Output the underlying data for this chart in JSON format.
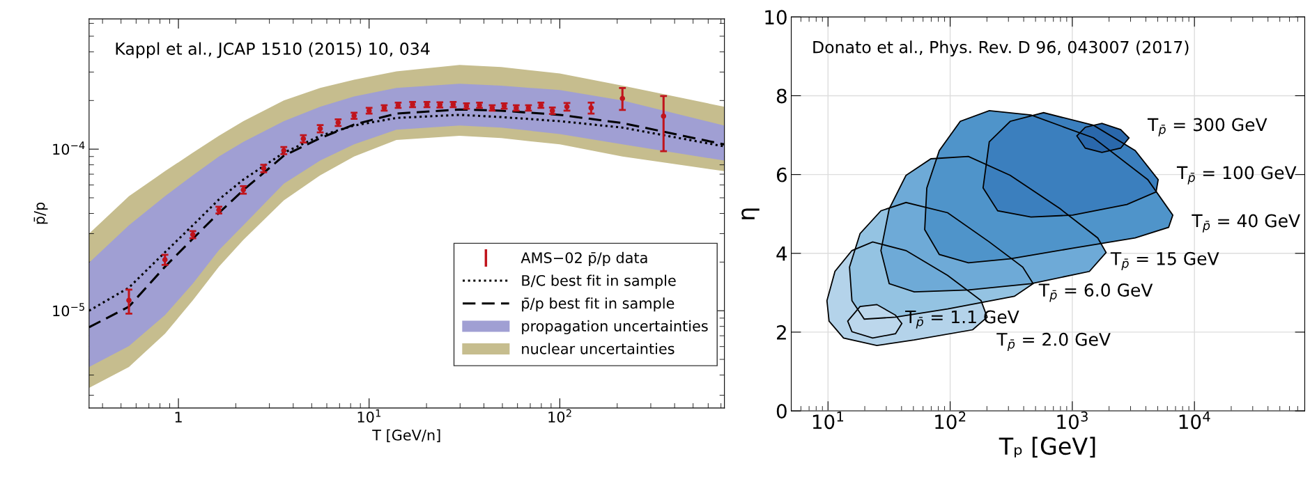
{
  "chart_data": [
    {
      "type": "line",
      "annotations": [
        "Kappl et al., JCAP 1510 (2015) 10, 034"
      ],
      "xlabel": "T [GeV/n]",
      "ylabel": "p̄/p",
      "log": "xy",
      "xlim": [
        0.34,
        730
      ],
      "ylim": [
        2.5e-06,
        0.00064
      ],
      "xticks": [
        1,
        {
          "value": 10,
          "label": "10$^{1}$"
        },
        {
          "value": 100,
          "label": "10$^{2}$"
        }
      ],
      "yticks": [
        {
          "value": 1e-05,
          "label": "10$^{−5}$"
        },
        {
          "value": 0.0001,
          "label": "10$^{−4}$"
        }
      ],
      "legend": "bottom right",
      "series": [
        {
          "name": "nuclear uncertainties",
          "type": "area",
          "color": "#c6bd8e",
          "x": [
            0.34,
            0.55,
            0.85,
            1.19,
            1.63,
            2.19,
            3.57,
            5.54,
            8.34,
            13.9,
            29.8,
            49.3,
            100,
            213,
            728
          ],
          "values": [
            null,
            null,
            null,
            null,
            null,
            null,
            null,
            null,
            null,
            null,
            null,
            null,
            null,
            null,
            null
          ],
          "lower": [
            3.33e-06,
            4.49e-06,
            7.2e-06,
            1.16e-05,
            1.87e-05,
            2.74e-05,
            4.82e-05,
            6.89e-05,
            9e-05,
            0.000114,
            0.000121,
            0.000117,
            0.000107,
            9e-05,
            7.3e-05
          ],
          "upper": [
            3e-05,
            5.11e-05,
            7.3e-05,
            9.5e-05,
            0.000121,
            0.000149,
            0.0002,
            0.000239,
            0.000269,
            0.000303,
            0.000332,
            0.000322,
            0.000294,
            0.000247,
            0.000183
          ]
        },
        {
          "name": "propagation uncertainties",
          "type": "area",
          "color": "#a09fd3",
          "x": [
            0.34,
            0.55,
            0.85,
            1.19,
            1.63,
            2.19,
            3.57,
            5.54,
            8.34,
            13.9,
            29.8,
            49.3,
            100,
            213,
            728
          ],
          "values": [
            null,
            null,
            null,
            null,
            null,
            null,
            null,
            null,
            null,
            null,
            null,
            null,
            null,
            null,
            null
          ],
          "lower": [
            4.49e-06,
            6.04e-06,
            9.4e-06,
            1.47e-05,
            2.37e-05,
            3.38e-05,
            6.11e-05,
            8.5e-05,
            0.000107,
            0.000132,
            0.00014,
            0.000136,
            0.000124,
            0.000107,
            8.5e-05
          ],
          "upper": [
            1.98e-05,
            3.38e-05,
            5.11e-05,
            6.89e-05,
            9e-05,
            0.000111,
            0.000149,
            0.000183,
            0.000212,
            0.000239,
            0.000254,
            0.000247,
            0.000232,
            0.0002,
            0.00014
          ]
        },
        {
          "name": "p̄/p best fit in sample",
          "type": "line",
          "line_style": "dashed",
          "color": "#000000",
          "x": [
            0.34,
            0.55,
            0.85,
            1.19,
            1.63,
            2.19,
            3.57,
            5.54,
            8.34,
            13.9,
            29.8,
            49.3,
            100,
            213,
            728
          ],
          "values": [
            7.9e-06,
            1.06e-05,
            1.87e-05,
            2.79e-05,
            4.03e-05,
            5.58e-05,
            9.1e-05,
            0.000117,
            0.000142,
            0.000166,
            0.000176,
            0.000173,
            0.000163,
            0.000145,
            0.000107
          ]
        },
        {
          "name": "B/C best fit in sample",
          "type": "line",
          "line_style": "dotted",
          "color": "#000000",
          "x": [
            0.34,
            0.55,
            0.85,
            1.19,
            1.63,
            2.19,
            3.57,
            5.54,
            8.34,
            13.9,
            29.8,
            49.3,
            100,
            213,
            728
          ],
          "values": [
            1e-05,
            1.39e-05,
            2.3e-05,
            3.38e-05,
            4.88e-05,
            6.48e-05,
            9.5e-05,
            0.000121,
            0.00014,
            0.000156,
            0.000163,
            0.000158,
            0.000149,
            0.000136,
            0.000104
          ]
        },
        {
          "name": "AMS−02 p̄/p data",
          "type": "scatter",
          "marker": "circle",
          "color": "#c0141c",
          "x": [
            0.55,
            0.85,
            1.19,
            1.63,
            2.19,
            2.8,
            3.57,
            4.52,
            5.54,
            6.88,
            8.34,
            10.0,
            12.0,
            14.2,
            16.9,
            20.1,
            23.5,
            27.6,
            32.4,
            37.9,
            44.2,
            51.1,
            59.1,
            68.5,
            79.6,
            91.4,
            109,
            146,
            213,
            350
          ],
          "values": [
            1.16e-05,
            2.07e-05,
            2.96e-05,
            4.2e-05,
            5.6e-05,
            7.6e-05,
            9.8e-05,
            0.000116,
            0.000134,
            0.000146,
            0.000161,
            0.000173,
            0.00018,
            0.000187,
            0.000189,
            0.000189,
            0.000188,
            0.000189,
            0.000185,
            0.000187,
            0.00018,
            0.000185,
            0.00018,
            0.00018,
            0.000187,
            0.000173,
            0.000183,
            0.00018,
            0.000206,
            0.00016
          ],
          "errors": [
            [
              9.6e-06,
              1.35e-05
            ],
            1.5e-06,
            1.5e-06,
            2e-06,
            3e-06,
            4e-06,
            5e-06,
            6e-06,
            7e-06,
            7e-06,
            7e-06,
            7e-06,
            7e-06,
            7e-06,
            7e-06,
            7e-06,
            7e-06,
            7e-06,
            7e-06,
            7e-06,
            7e-06,
            7e-06,
            7e-06,
            7e-06,
            7e-06,
            8e-06,
            1e-05,
            1.4e-05,
            [
              0.000175,
              0.000239
            ],
            [
              9.7e-05,
              0.000213
            ]
          ]
        }
      ]
    },
    {
      "type": "area",
      "annotations": [
        "Donato et al., Phys. Rev. D 96, 043007 (2017)"
      ],
      "xlabel": "Tₚ [GeV]",
      "ylabel": "η",
      "log": "x",
      "xlim": [
        5,
        80000
      ],
      "ylim": [
        0,
        10
      ],
      "xticks": [
        {
          "value": 10,
          "label": "10$^{1}$"
        },
        {
          "value": 100,
          "label": "10$^{2}$"
        },
        {
          "value": 1000,
          "label": "10$^{3}$"
        },
        {
          "value": 10000,
          "label": "10$^{4}$"
        }
      ],
      "yticks": [
        0,
        2,
        4,
        6,
        8,
        10
      ],
      "grid": true,
      "series": [
        {
          "name": "T$_{p̄}$ = 2.0 GeV",
          "color": "#b4d3ea",
          "x": [
            9.8,
            11.4,
            15.7,
            23.2,
            43.5,
            95.4,
            179,
            201,
            153,
            50.8,
            25.1,
            13.4,
            10.2
          ],
          "values": [
            2.8,
            3.54,
            4.07,
            4.29,
            4.07,
            3.44,
            2.8,
            2.38,
            2.06,
            1.8,
            1.66,
            1.85,
            2.28
          ]
        },
        {
          "name": "T$_{p̄}$ = 6.0 GeV",
          "color": "#94c3e2",
          "x": [
            15.0,
            18.3,
            27.1,
            43.5,
            95.4,
            209,
            393,
            478,
            336,
            95.4,
            35.7,
            19.8,
            15.7
          ],
          "values": [
            3.65,
            4.5,
            5.08,
            5.29,
            5.03,
            4.29,
            3.65,
            3.23,
            2.91,
            2.59,
            2.38,
            2.33,
            2.8
          ]
        },
        {
          "name": "T$_{p̄}$ = 15 GeV",
          "color": "#6eaad7",
          "x": [
            27.1,
            31.7,
            43.5,
            69.6,
            141,
            310,
            796,
            1616,
            1890,
            1380,
            459,
            141,
            50.8,
            31.7
          ],
          "values": [
            4.07,
            5.13,
            5.98,
            6.4,
            6.46,
            5.98,
            5.13,
            4.39,
            4.02,
            3.54,
            3.23,
            3.07,
            3.02,
            3.23
          ]
        },
        {
          "name": "T$_{p̄}$ = 40 GeV",
          "color": "#4f94ca",
          "x": [
            61.9,
            64.4,
            81.5,
            121,
            209,
            459,
            1493,
            4150,
            6650,
            6143,
            3273,
            1007,
            310,
            141,
            81.5
          ],
          "values": [
            4.6,
            5.66,
            6.61,
            7.35,
            7.62,
            7.51,
            6.93,
            5.87,
            4.97,
            4.66,
            4.39,
            4.13,
            3.86,
            3.76,
            3.97
          ]
        },
        {
          "name": "T$_{p̄}$ = 100 GeV",
          "color": "#3b7fbe",
          "x": [
            186,
            209,
            310,
            582,
            1493,
            3273,
            5047,
            4853,
            2800,
            1007,
            459,
            245
          ],
          "values": [
            5.66,
            6.83,
            7.35,
            7.57,
            7.25,
            6.61,
            5.87,
            5.56,
            5.24,
            4.97,
            4.92,
            5.08
          ]
        },
        {
          "name": "T$_{p̄}$ = 300 GeV",
          "color": "#2a68ac",
          "x": [
            1090,
            1277,
            1748,
            2488,
            2911,
            2488,
            1748,
            1277
          ],
          "values": [
            6.98,
            7.2,
            7.3,
            7.14,
            6.93,
            6.67,
            6.56,
            6.67
          ]
        },
        {
          "name": "T$_{p̄}$ = 1.1 GeV",
          "color": "#bcd7ec",
          "x": [
            14.5,
            18.3,
            25.1,
            35.7,
            40.2,
            35.7,
            23.2,
            15.7
          ],
          "values": [
            2.28,
            2.65,
            2.7,
            2.43,
            2.22,
            1.96,
            1.85,
            2.01
          ]
        }
      ]
    }
  ]
}
